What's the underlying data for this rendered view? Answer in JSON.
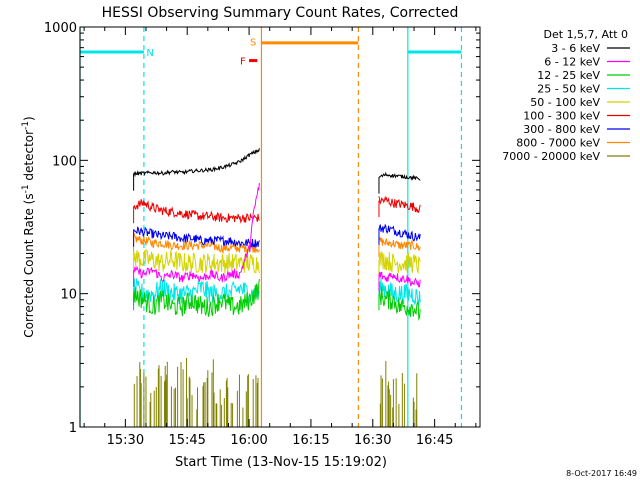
{
  "chart_data": {
    "type": "line",
    "title": "HESSI Observing Summary Count Rates, Corrected",
    "xlabel": "Start Time (13-Nov-15 15:19:02)",
    "ylabel_main": "Corrected Count Rate (s",
    "ylabel_sup1": "-1",
    "ylabel_mid": " detector",
    "ylabel_sup2": "-1",
    "ylabel_end": ")",
    "timestamp": "8-Oct-2017 16:49",
    "y_scale": "log",
    "xlim": [
      "15:19:00",
      "16:56:00"
    ],
    "ylim": [
      1,
      1000
    ],
    "x_ticks": [
      "15:30",
      "15:45",
      "16:00",
      "16:15",
      "16:30",
      "16:45"
    ],
    "y_ticks": [
      "1",
      "10",
      "100",
      "1000"
    ],
    "legend_header": "Det 1,5,7, Att 0",
    "legend_position": "right",
    "series": [
      {
        "name": "3 - 6 keV",
        "color": "#000000",
        "segments": [
          {
            "start": "15:32:00",
            "end": "16:02:30",
            "values": [
              79,
              80,
              81,
              80,
              82,
              81,
              83,
              84,
              85,
              88,
              92,
              98,
              110,
              120
            ]
          },
          {
            "start": "16:31:30",
            "end": "16:41:30",
            "values": [
              75,
              78,
              77,
              76,
              75,
              74,
              72
            ]
          }
        ]
      },
      {
        "name": "6 - 12 keV",
        "color": "#ff00ff",
        "segments": [
          {
            "start": "15:32:00",
            "end": "16:02:30",
            "values": [
              15,
              14,
              15,
              13,
              14,
              13,
              14,
              13,
              14,
              13,
              14,
              14,
              22,
              65
            ]
          },
          {
            "start": "16:31:30",
            "end": "16:41:30",
            "values": [
              14,
              13,
              14,
              13,
              13,
              12,
              12
            ]
          }
        ]
      },
      {
        "name": "12 - 25 keV",
        "color": "#00cc00",
        "segments": [
          {
            "start": "15:32:00",
            "end": "16:02:30",
            "values": [
              10,
              9,
              8,
              9,
              8,
              8,
              9,
              8,
              8,
              9,
              8,
              8,
              9,
              11
            ]
          },
          {
            "start": "16:31:30",
            "end": "16:41:30",
            "values": [
              10,
              9,
              9,
              8,
              8,
              8,
              7
            ]
          }
        ]
      },
      {
        "name": "25 - 50 keV",
        "color": "#00e5e5",
        "segments": [
          {
            "start": "15:32:00",
            "end": "16:02:30",
            "values": [
              11,
              10,
              10,
              11,
              10,
              10,
              10,
              11,
              10,
              10,
              10,
              11,
              10,
              10
            ]
          },
          {
            "start": "16:31:30",
            "end": "16:41:30",
            "values": [
              11,
              11,
              10,
              10,
              10,
              10,
              9
            ]
          }
        ]
      },
      {
        "name": "50 - 100 keV",
        "color": "#d4d400",
        "segments": [
          {
            "start": "15:32:00",
            "end": "16:02:30",
            "values": [
              19,
              18,
              18,
              17,
              18,
              17,
              17,
              17,
              17,
              17,
              17,
              17,
              17,
              17
            ]
          },
          {
            "start": "16:31:30",
            "end": "16:41:30",
            "values": [
              18,
              18,
              17,
              17,
              17,
              17,
              16
            ]
          }
        ]
      },
      {
        "name": "100 - 300 keV",
        "color": "#ee0000",
        "segments": [
          {
            "start": "15:32:00",
            "end": "16:02:30",
            "values": [
              45,
              48,
              44,
              42,
              41,
              40,
              39,
              38,
              38,
              37,
              37,
              37,
              37,
              37
            ]
          },
          {
            "start": "16:31:30",
            "end": "16:41:30",
            "values": [
              50,
              50,
              48,
              47,
              46,
              45,
              43
            ]
          }
        ]
      },
      {
        "name": "300 - 800 keV",
        "color": "#0000ee",
        "segments": [
          {
            "start": "15:32:00",
            "end": "16:02:30",
            "values": [
              30,
              29,
              28,
              27,
              27,
              26,
              26,
              25,
              25,
              25,
              25,
              24,
              24,
              24
            ]
          },
          {
            "start": "16:31:30",
            "end": "16:41:30",
            "values": [
              31,
              31,
              30,
              29,
              28,
              27,
              26
            ]
          }
        ]
      },
      {
        "name": "800 - 7000 keV",
        "color": "#ff8800",
        "segments": [
          {
            "start": "15:32:00",
            "end": "16:02:30",
            "values": [
              26,
              25,
              24,
              24,
              23,
              23,
              23,
              23,
              23,
              22,
              22,
              22,
              22,
              22
            ]
          },
          {
            "start": "16:31:30",
            "end": "16:41:30",
            "values": [
              25,
              24,
              24,
              23,
              23,
              23,
              22
            ]
          }
        ]
      },
      {
        "name": "7000 - 20000 keV",
        "color": "#808000",
        "segments": [
          {
            "start": "15:32:00",
            "end": "16:02:30",
            "values": [
              1.5,
              2,
              1.5,
              2,
              1.5,
              2,
              1.5,
              1.5,
              2,
              1.5,
              1.5,
              1.5,
              1.5,
              1.5
            ]
          },
          {
            "start": "16:31:30",
            "end": "16:41:30",
            "values": [
              1.5,
              2,
              1.5,
              1.5,
              2,
              1.5,
              1.5
            ]
          }
        ]
      }
    ],
    "state_lines": [
      {
        "label": "",
        "color": "#00e5e5",
        "y": 650,
        "start": "15:19:00",
        "end": "15:34:30"
      },
      {
        "label": "",
        "color": "#00e5e5",
        "y": 650,
        "start": "16:38:30",
        "end": "16:51:30"
      },
      {
        "label": "",
        "color": "#ff8800",
        "y": 760,
        "start": "16:03:00",
        "end": "16:26:30"
      },
      {
        "label": "",
        "color": "#ee0000",
        "y": 560,
        "start": "16:00:00",
        "end": "16:02:00"
      }
    ],
    "flag_labels": [
      {
        "text": "N",
        "color": "#00e5e5",
        "time": "15:36:00",
        "y": 650
      },
      {
        "text": "S",
        "color": "#ff8800",
        "time": "16:01:00",
        "y": 780
      },
      {
        "text": "F",
        "color": "#ee0000",
        "time": "15:58:30",
        "y": 560
      }
    ],
    "vertical_lines": [
      {
        "color": "#00e5e5",
        "style": "solid",
        "time": "15:19:00"
      },
      {
        "color": "#00e5e5",
        "style": "dashed",
        "time": "15:34:30"
      },
      {
        "color": "#ff8800",
        "style": "solid",
        "time": "16:03:00"
      },
      {
        "color": "#ff8800",
        "style": "dashed",
        "time": "16:26:30"
      },
      {
        "color": "#00e5e5",
        "style": "solid",
        "time": "16:38:30"
      },
      {
        "color": "#00e5e5",
        "style": "dashed",
        "time": "16:51:30"
      }
    ]
  }
}
